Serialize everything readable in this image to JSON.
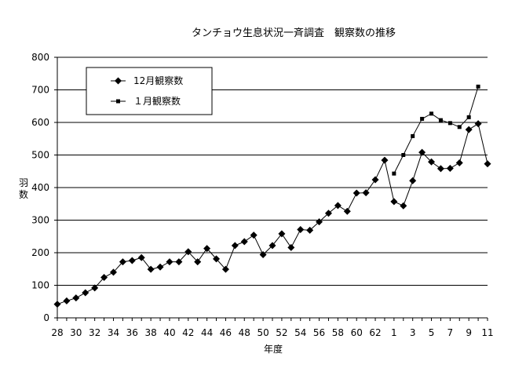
{
  "chart_data": {
    "type": "line",
    "title": "タンチョウ生息状況一斉調査　観察数の推移",
    "xlabel": "年度",
    "ylabel": "羽数",
    "ylim": [
      0,
      800
    ],
    "yticks": [
      "0",
      "100",
      "200",
      "300",
      "400",
      "500",
      "600",
      "700",
      "800"
    ],
    "x_tick_labels": [
      "28",
      "30",
      "32",
      "34",
      "36",
      "38",
      "40",
      "42",
      "44",
      "46",
      "48",
      "50",
      "52",
      "54",
      "56",
      "58",
      "60",
      "62",
      "1",
      "3",
      "5",
      "7",
      "9",
      "11"
    ],
    "grid": "horizontal",
    "legend_position": "top-left",
    "x_categories": [
      "28",
      "29",
      "30",
      "31",
      "32",
      "33",
      "34",
      "35",
      "36",
      "37",
      "38",
      "39",
      "40",
      "41",
      "42",
      "43",
      "44",
      "45",
      "46",
      "47",
      "48",
      "49",
      "50",
      "51",
      "52",
      "53",
      "54",
      "55",
      "56",
      "57",
      "58",
      "59",
      "60",
      "61",
      "62",
      "63",
      "1",
      "2",
      "3",
      "4",
      "5",
      "6",
      "7",
      "8",
      "9",
      "10",
      "11"
    ],
    "series": [
      {
        "name": "12月観察数",
        "marker": "diamond",
        "color": "#000000",
        "values": [
          42,
          52,
          61,
          77,
          92,
          124,
          140,
          172,
          176,
          185,
          149,
          156,
          172,
          172,
          203,
          172,
          213,
          181,
          149,
          222,
          234,
          254,
          194,
          222,
          258,
          216,
          271,
          269,
          295,
          321,
          345,
          327,
          383,
          384,
          424,
          484,
          357,
          344,
          421,
          508,
          479,
          458,
          459,
          476,
          578,
          596,
          473
        ]
      },
      {
        "name": "１月観察数",
        "marker": "square",
        "color": "#000000",
        "values": [
          null,
          null,
          null,
          null,
          null,
          null,
          null,
          null,
          null,
          null,
          null,
          null,
          null,
          null,
          null,
          null,
          null,
          null,
          null,
          null,
          null,
          null,
          null,
          null,
          null,
          null,
          null,
          null,
          null,
          null,
          null,
          null,
          null,
          null,
          null,
          null,
          443,
          500,
          558,
          611,
          627,
          607,
          598,
          586,
          616,
          710,
          null
        ]
      }
    ]
  }
}
